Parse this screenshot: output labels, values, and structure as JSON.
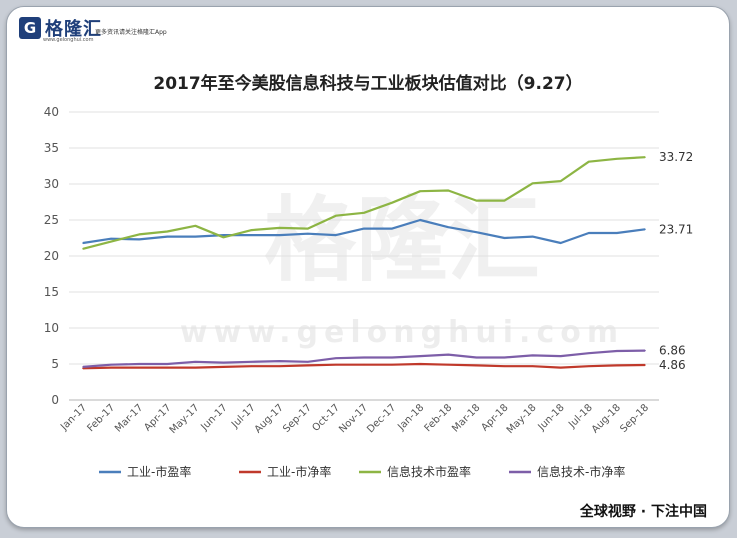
{
  "header": {
    "logo_mark": "G",
    "logo_text": "格隆汇",
    "logo_sub": "更多资讯请关注格隆汇App",
    "logo_url": "www.gelonghui.com"
  },
  "watermark": {
    "text_cn": "格隆汇",
    "text_url": "www.gelonghui.com"
  },
  "footer": {
    "slogan": "全球视野 · 下注中国"
  },
  "chart_data": {
    "type": "line",
    "title": "2017年至今美股信息科技与工业板块估值对比（9.27）",
    "xlabel": "",
    "ylabel": "",
    "ylim": [
      0,
      40
    ],
    "yticks": [
      0,
      5,
      10,
      15,
      20,
      25,
      30,
      35,
      40
    ],
    "grid": true,
    "legend": "bottom",
    "categories": [
      "Jan-17",
      "Feb-17",
      "Mar-17",
      "Apr-17",
      "May-17",
      "Jun-17",
      "Jul-17",
      "Aug-17",
      "Sep-17",
      "Oct-17",
      "Nov-17",
      "Dec-17",
      "Jan-18",
      "Feb-18",
      "Mar-18",
      "Apr-18",
      "May-18",
      "Jun-18",
      "Jul-18",
      "Aug-18",
      "Sep-18"
    ],
    "series": [
      {
        "name": "工业-市盈率",
        "color": "#4a7ebb",
        "values": [
          21.8,
          22.4,
          22.3,
          22.7,
          22.7,
          22.9,
          22.9,
          22.9,
          23.1,
          22.9,
          23.8,
          23.8,
          25.0,
          24.0,
          23.3,
          22.5,
          22.7,
          21.8,
          23.2,
          23.2,
          23.71
        ],
        "end_label": "23.71"
      },
      {
        "name": "工业-市净率",
        "color": "#c0392b",
        "values": [
          4.4,
          4.5,
          4.5,
          4.5,
          4.5,
          4.6,
          4.7,
          4.7,
          4.8,
          4.9,
          4.9,
          4.9,
          5.0,
          4.9,
          4.8,
          4.7,
          4.7,
          4.5,
          4.7,
          4.8,
          4.86
        ],
        "end_label": "4.86"
      },
      {
        "name": "信息技术市盈率",
        "color": "#8db544",
        "values": [
          21.0,
          22.0,
          23.0,
          23.4,
          24.2,
          22.6,
          23.6,
          23.9,
          23.8,
          25.6,
          26.0,
          27.4,
          29.0,
          29.1,
          27.7,
          27.7,
          30.1,
          30.4,
          33.1,
          33.5,
          33.72
        ],
        "end_label": "33.72"
      },
      {
        "name": "信息技术-市净率",
        "color": "#7d5ea8",
        "values": [
          4.6,
          4.9,
          5.0,
          5.0,
          5.3,
          5.2,
          5.3,
          5.4,
          5.3,
          5.8,
          5.9,
          5.9,
          6.1,
          6.3,
          5.9,
          5.9,
          6.2,
          6.1,
          6.5,
          6.8,
          6.86
        ],
        "end_label": "6.86"
      }
    ]
  }
}
